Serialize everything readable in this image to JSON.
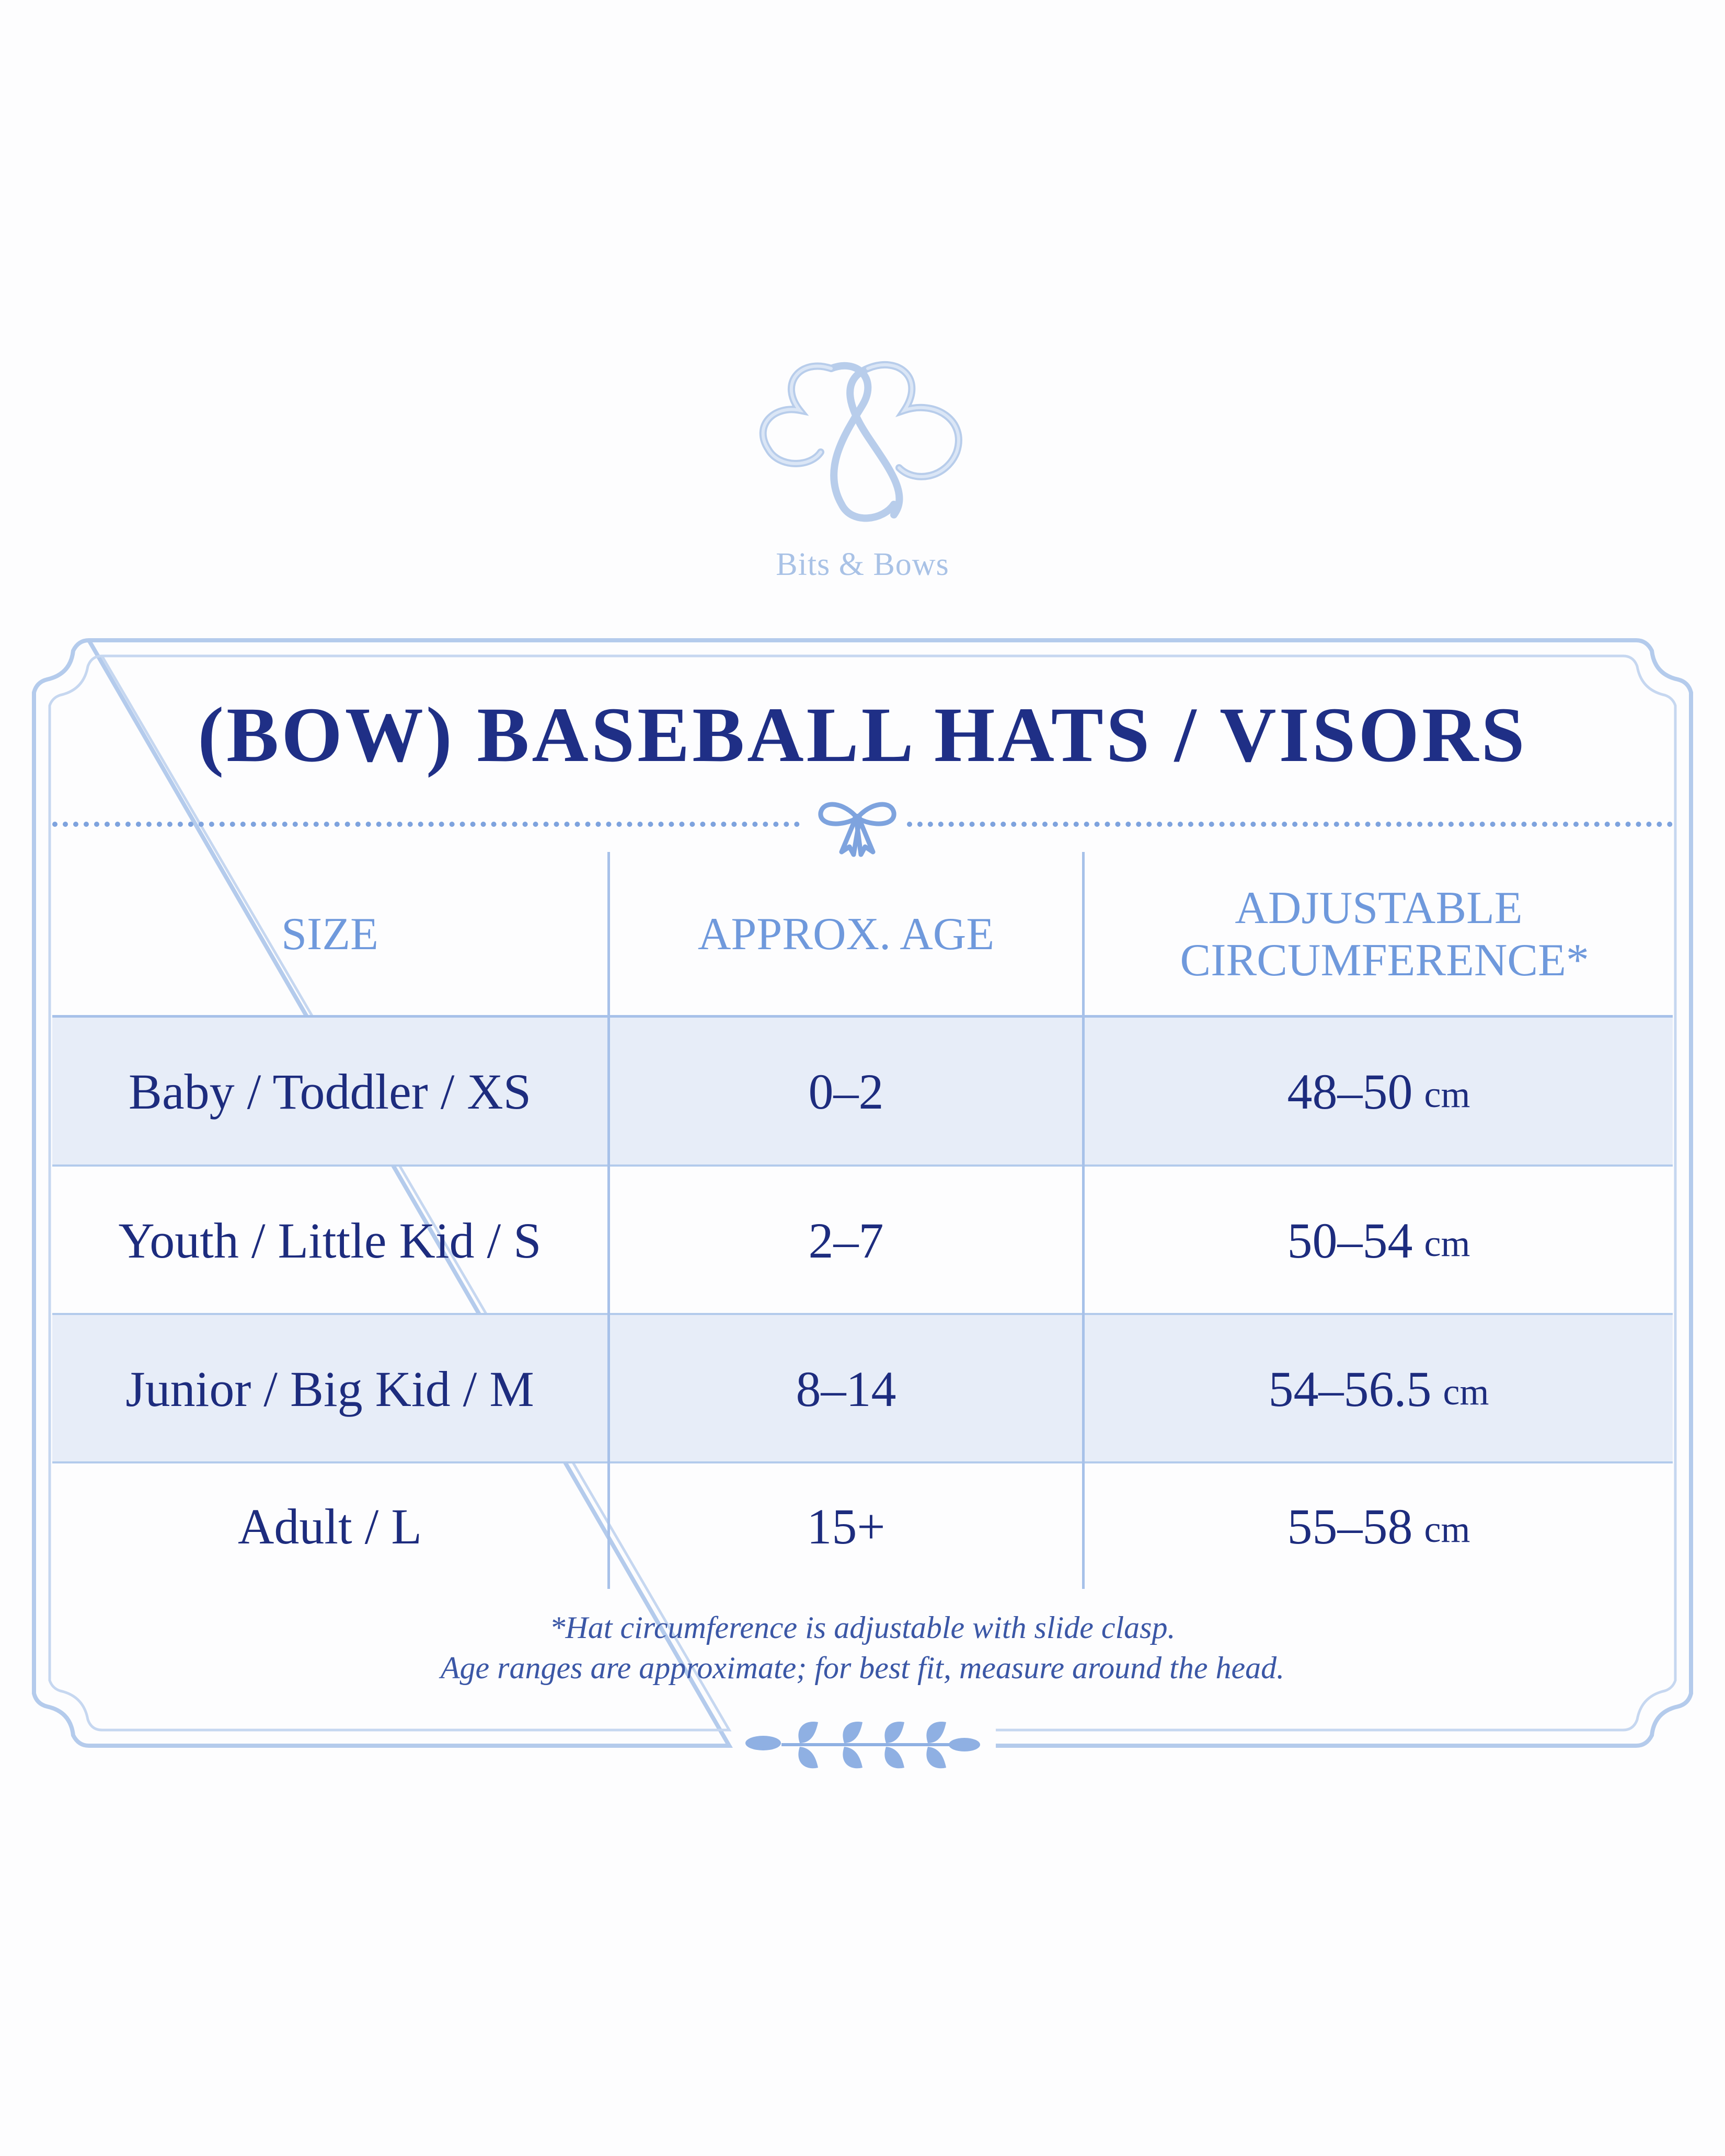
{
  "brand": {
    "monogram": "BB",
    "name": "Bits & Bows"
  },
  "title": "(BOW) BASEBALL HATS / VISORS",
  "table": {
    "headers": [
      "SIZE",
      "APPROX. AGE",
      "ADJUSTABLE CIRCUMFERENCE*"
    ],
    "rows": [
      {
        "size": "Baby / Toddler / XS",
        "age": "0–2",
        "circ": "48–50",
        "unit": "cm"
      },
      {
        "size": "Youth / Little Kid / S",
        "age": "2–7",
        "circ": "50–54",
        "unit": "cm"
      },
      {
        "size": "Junior / Big Kid / M",
        "age": "8–14",
        "circ": "54–56.5",
        "unit": "cm"
      },
      {
        "size": "Adult / L",
        "age": "15+",
        "circ": "55–58",
        "unit": "cm"
      }
    ]
  },
  "notes": {
    "line1": "*Hat circumference is adjustable with slide clasp.",
    "line2": "Age ranges are approximate; for best fit, measure around the head."
  },
  "colors": {
    "navy": "#1f2f86",
    "header_blue": "#6f99dc",
    "frame_blue": "#a7c1e9",
    "row_shade": "#e7edf8",
    "logo_blue": "#a9c2e6"
  },
  "icons": {
    "logo": "bb-monogram-logo",
    "divider": "ribbon-bow-icon",
    "ornament": "laurel-branch-icon"
  }
}
